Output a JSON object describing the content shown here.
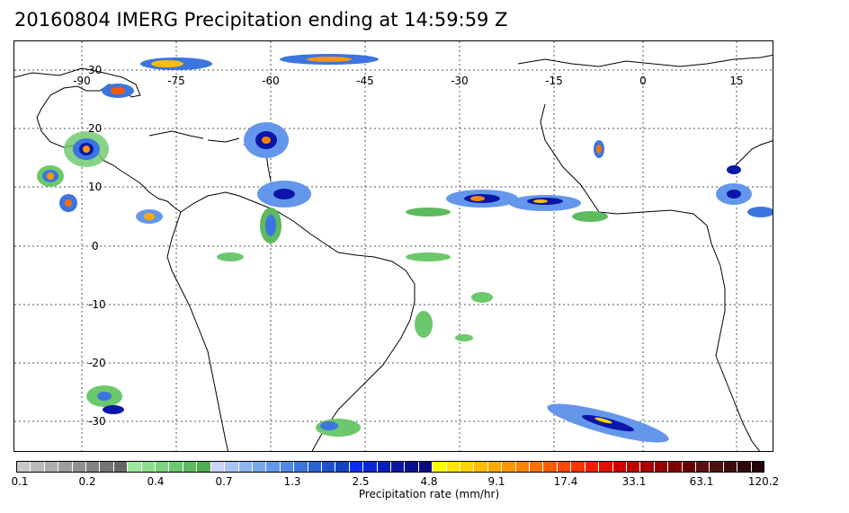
{
  "title": "20160804 IMERG Precipitation ending at 14:59:59 Z",
  "map": {
    "lon_labels": [
      "-90",
      "-75",
      "-60",
      "-45",
      "-30",
      "-15",
      "0",
      "15"
    ],
    "lat_labels": [
      "30",
      "20",
      "10",
      "0",
      "-10",
      "-20",
      "-30"
    ],
    "gridlines": true
  },
  "colorbar": {
    "label": "Precipitation rate (mm/hr)",
    "tick_labels": [
      "0.1",
      "0.2",
      "0.4",
      "0.7",
      "1.3",
      "2.5",
      "4.8",
      "9.1",
      "17.4",
      "33.1",
      "63.1",
      "120.2"
    ],
    "colors": [
      "#c8c8c8",
      "#bababa",
      "#acacac",
      "#9e9e9e",
      "#909090",
      "#828282",
      "#747474",
      "#666666",
      "#9ee89e",
      "#8ce08c",
      "#7ad47a",
      "#6cc86c",
      "#5eba5e",
      "#50ac50",
      "#c8d2f5",
      "#a8c4f5",
      "#8cb6f2",
      "#78a8ef",
      "#6497eb",
      "#5086e6",
      "#3c74e0",
      "#2a62d8",
      "#1e50d0",
      "#1440c4",
      "#0a2ef0",
      "#0a26d8",
      "#0a1ec0",
      "#0a16a8",
      "#0a0e90",
      "#0a0880",
      "#ffff00",
      "#ffe600",
      "#ffd200",
      "#ffbe00",
      "#ffaa00",
      "#ff9600",
      "#ff8200",
      "#ff6e00",
      "#ff5a00",
      "#ff4600",
      "#ff3200",
      "#f01e00",
      "#e01000",
      "#d00000",
      "#bc0000",
      "#a80000",
      "#940000",
      "#800000",
      "#6c0000",
      "#5a1010",
      "#4a1010",
      "#3c0c0c",
      "#2e0808",
      "#240404"
    ]
  }
}
